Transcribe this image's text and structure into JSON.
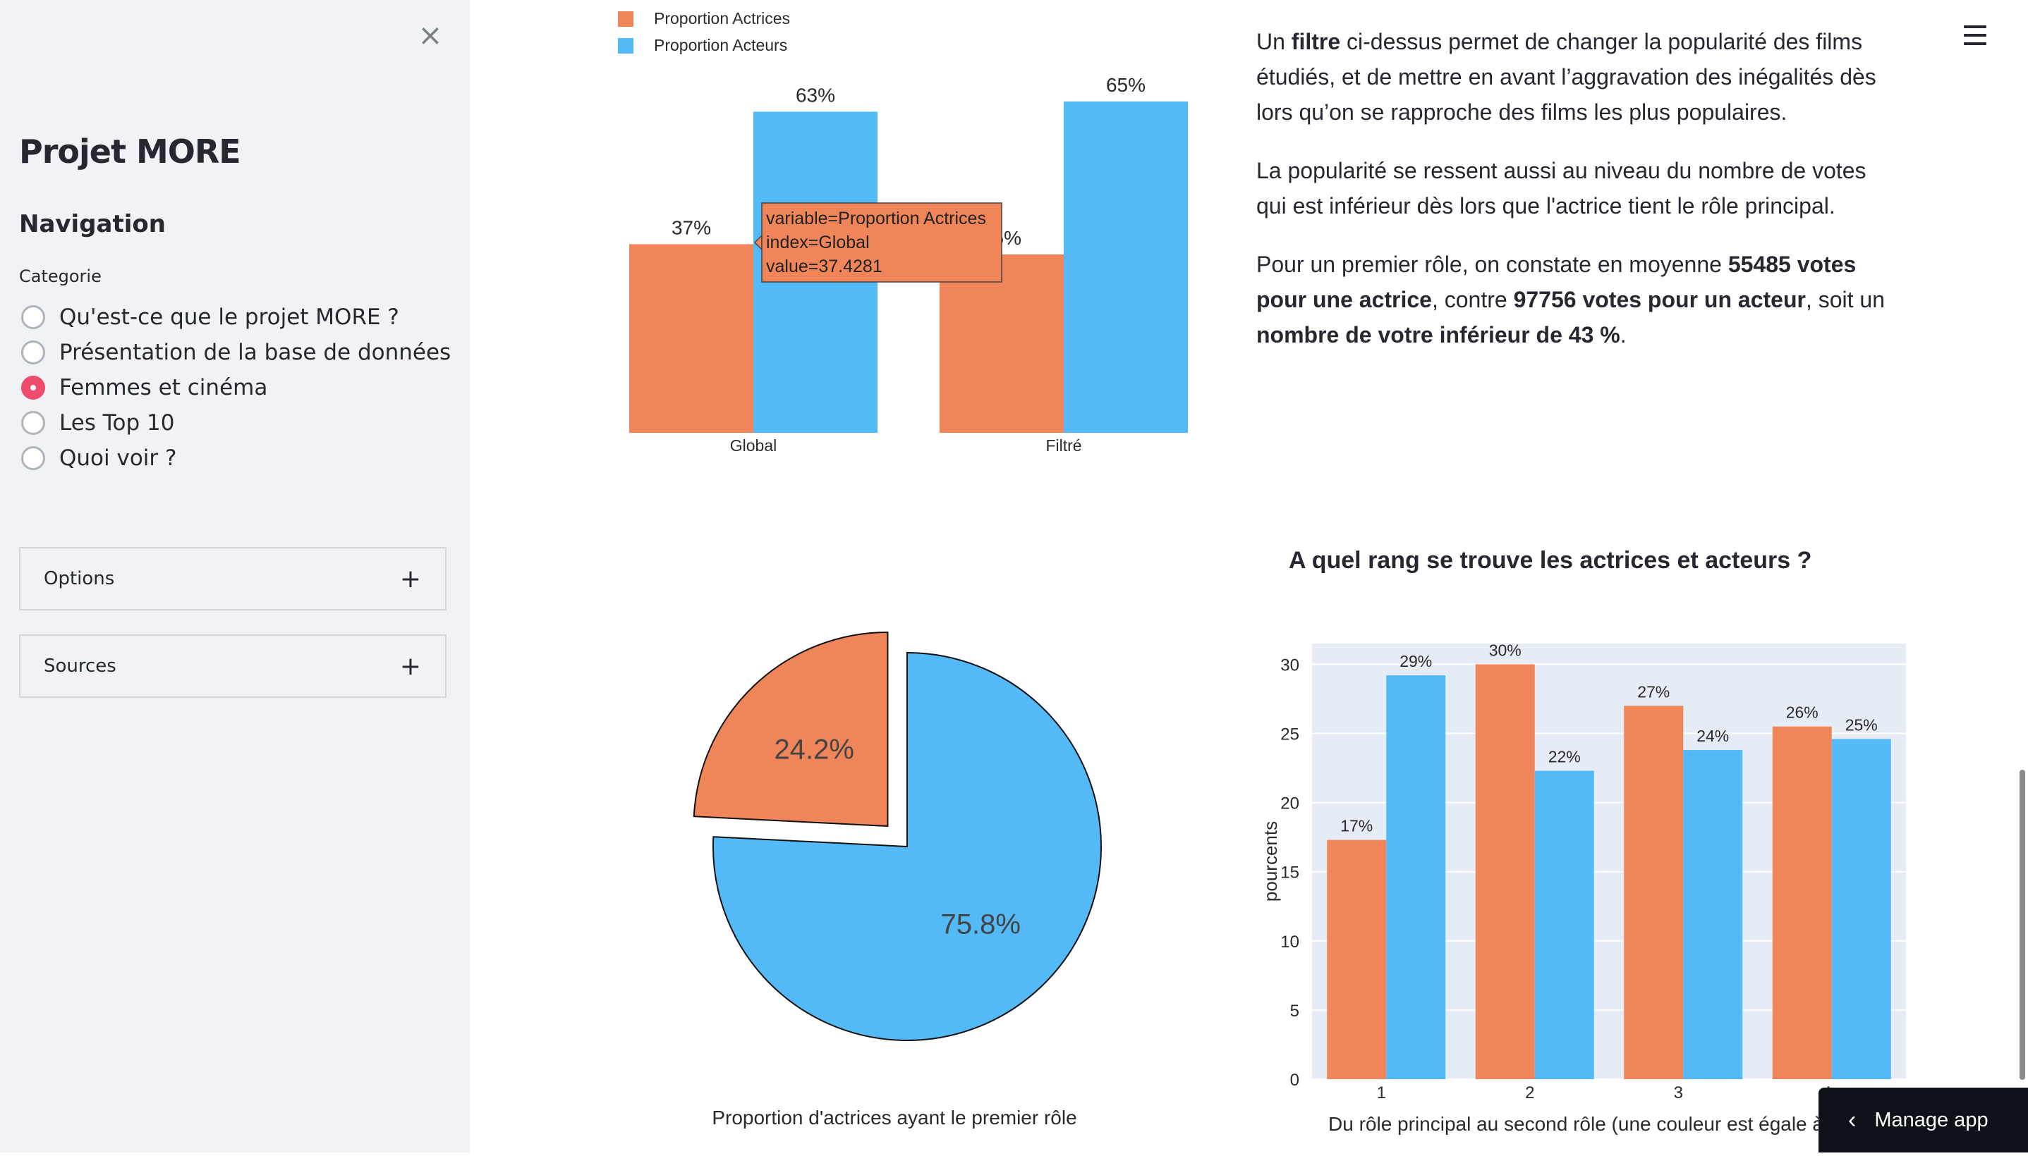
{
  "sidebar": {
    "close_label": "×",
    "title": "Projet MORE",
    "nav_heading": "Navigation",
    "radio_label": "Categorie",
    "options": [
      {
        "label": "Qu'est-ce que le projet MORE ?",
        "selected": false
      },
      {
        "label": "Présentation de la base de données",
        "selected": false
      },
      {
        "label": "Femmes et cinéma",
        "selected": true
      },
      {
        "label": "Les Top 10",
        "selected": false
      },
      {
        "label": "Quoi voir ?",
        "selected": false
      }
    ],
    "expanders": [
      {
        "label": "Options",
        "icon": "+"
      },
      {
        "label": "Sources",
        "icon": "+"
      }
    ]
  },
  "colors": {
    "actrices": "#ef8558",
    "acteurs": "#54b9f7",
    "radio_selected": "#ef4b6c"
  },
  "text": {
    "p1": [
      {
        "t": "Un ",
        "b": false
      },
      {
        "t": "filtre",
        "b": true
      },
      {
        "t": " ci-dessus permet de changer la popularité des films étudiés, et de mettre en avant l’aggravation des inégalités dès lors qu’on se rapproche des films les plus populaires.",
        "b": false
      }
    ],
    "p2": [
      {
        "t": "La popularité se ressent aussi au niveau du nombre de votes qui est inférieur dès lors que l'actrice tient le rôle principal.",
        "b": false
      }
    ],
    "p3": [
      {
        "t": "Pour un premier rôle, on constate en moyenne ",
        "b": false
      },
      {
        "t": "55485 votes pour une actrice",
        "b": true
      },
      {
        "t": ", contre ",
        "b": false
      },
      {
        "t": "97756 votes pour un acteur",
        "b": true
      },
      {
        "t": ", soit un ",
        "b": false
      },
      {
        "t": "nombre de votre inférieur de 43 %",
        "b": true
      },
      {
        "t": ".",
        "b": false
      }
    ]
  },
  "chart_data": [
    {
      "type": "bar",
      "categories": [
        "Global",
        "Filtré"
      ],
      "series": [
        {
          "name": "Proportion Actrices",
          "values": [
            37,
            35
          ],
          "labels": [
            "37%",
            "35%"
          ]
        },
        {
          "name": "Proportion Acteurs",
          "values": [
            63,
            65
          ],
          "labels": [
            "63%",
            "65%"
          ]
        }
      ],
      "legend": "top-left",
      "tooltip": [
        "variable=Proportion Actrices",
        "index=Global",
        "value=37.4281"
      ]
    },
    {
      "type": "pie",
      "slices": [
        {
          "label": "24.2%",
          "value": 24.2
        },
        {
          "label": "75.8%",
          "value": 75.8
        }
      ],
      "caption": "Proportion d'actrices ayant le premier rôle"
    },
    {
      "type": "bar",
      "title": "A quel rang se trouve les actrices et acteurs ?",
      "categories": [
        "1",
        "2",
        "3",
        "4"
      ],
      "series": [
        {
          "values": [
            17.3,
            30,
            27,
            25.5
          ],
          "labels": [
            "17%",
            "30%",
            "27%",
            "26%"
          ]
        },
        {
          "values": [
            29.2,
            22.3,
            23.8,
            24.6
          ],
          "labels": [
            "29%",
            "22%",
            "24%",
            "25%"
          ]
        }
      ],
      "ylabel": "pourcents",
      "xlabel": "Du rôle principal au second rôle (une couleur est égale à",
      "ylim": [
        0,
        31.5
      ],
      "yticks": [
        0,
        5,
        10,
        15,
        20,
        25,
        30
      ],
      "grid": true
    }
  ],
  "manage_app": "Manage app"
}
